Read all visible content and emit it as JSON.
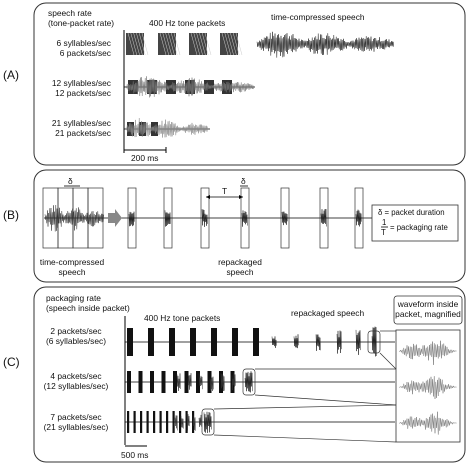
{
  "panel_labels": {
    "a": "(A)",
    "b": "(B)",
    "c": "(C)"
  },
  "panel_a": {
    "header": [
      "speech rate",
      "(tone-packet rate)"
    ],
    "tone_title": "400 Hz tone packets",
    "speech_title": "time-compressed speech",
    "rows": [
      {
        "label": [
          "6 syllables/sec",
          "6 packets/sec"
        ]
      },
      {
        "label": [
          "12 syllables/sec",
          "12 packets/sec"
        ]
      },
      {
        "label": [
          "21 syllables/sec",
          "21 packets/sec"
        ]
      }
    ],
    "scale_label": "200 ms"
  },
  "panel_b": {
    "left_caption": [
      "time-compressed",
      "speech"
    ],
    "center_caption": [
      "repackaged",
      "speech"
    ],
    "delta_symbol": "δ",
    "tau_symbol": "T",
    "legend_delta": "δ = packet duration",
    "legend_one": "1",
    "legend_tau": "T",
    "legend_rate": "= packaging rate"
  },
  "panel_c": {
    "header": [
      "packaging rate",
      "(speech inside packet)"
    ],
    "tone_title": "400 Hz tone packets",
    "speech_title": "repackaged speech",
    "magnified_title": [
      "waveform inside",
      "packet, magnified"
    ],
    "rows": [
      {
        "label": [
          "2 packets/sec",
          "(6 syllables/sec)"
        ]
      },
      {
        "label": [
          "4 packets/sec",
          "(12 syllables/sec)"
        ]
      },
      {
        "label": [
          "7 packets/sec",
          "(21 syllables/sec)"
        ]
      }
    ],
    "scale_label": "500 ms"
  }
}
